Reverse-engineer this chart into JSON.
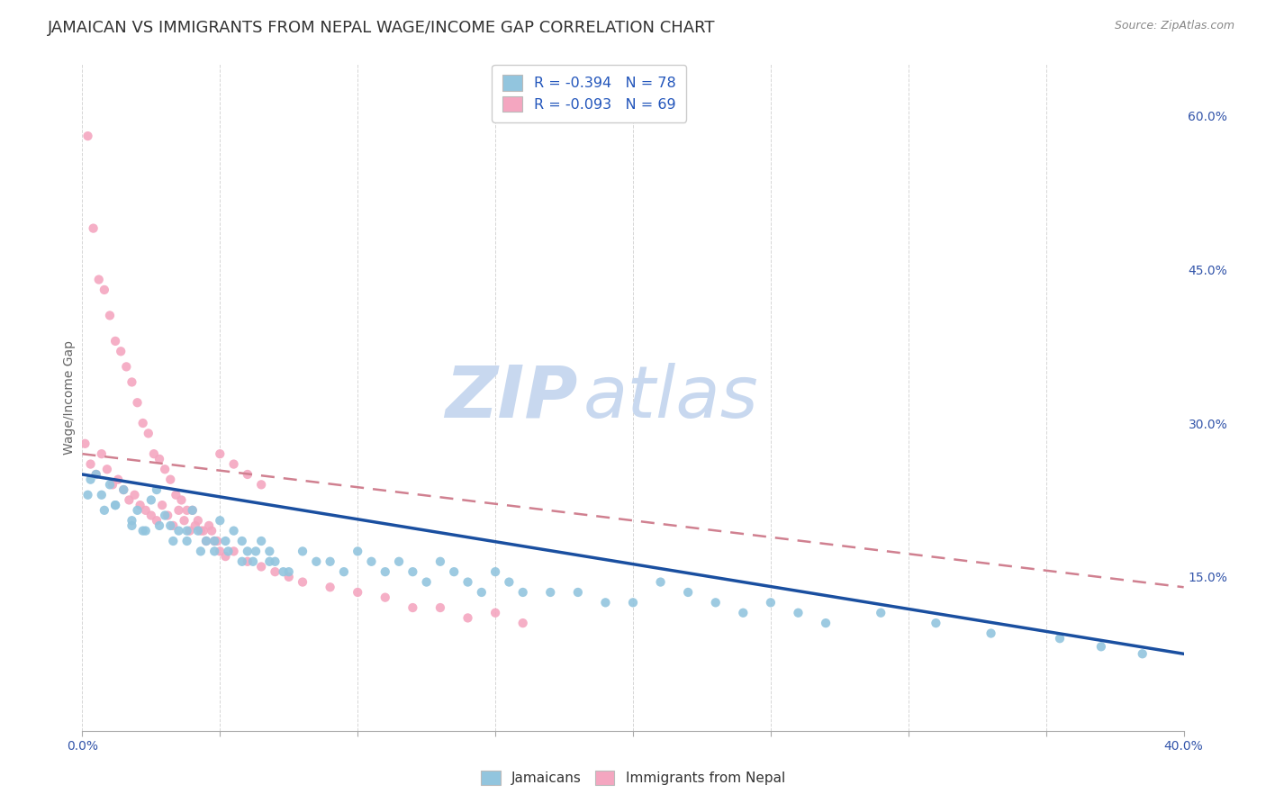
{
  "title": "JAMAICAN VS IMMIGRANTS FROM NEPAL WAGE/INCOME GAP CORRELATION CHART",
  "source_text": "Source: ZipAtlas.com",
  "ylabel": "Wage/Income Gap",
  "xlim": [
    0.0,
    0.4
  ],
  "ylim": [
    0.0,
    0.65
  ],
  "xticks": [
    0.0,
    0.05,
    0.1,
    0.15,
    0.2,
    0.25,
    0.3,
    0.35,
    0.4
  ],
  "yticks_right": [
    0.15,
    0.3,
    0.45,
    0.6
  ],
  "ytick_labels_right": [
    "15.0%",
    "30.0%",
    "45.0%",
    "60.0%"
  ],
  "r_jamaican": -0.394,
  "n_jamaican": 78,
  "r_nepal": -0.093,
  "n_nepal": 69,
  "color_jamaican": "#92c5de",
  "color_nepal": "#f4a6c0",
  "color_jamaican_line": "#1a4fa0",
  "color_nepal_line": "#d08090",
  "background_color": "#ffffff",
  "plot_bg_color": "#ffffff",
  "grid_color": "#cccccc",
  "watermark_zip": "ZIP",
  "watermark_atlas": "atlas",
  "watermark_color": "#c8d8ef",
  "title_fontsize": 13,
  "label_fontsize": 10,
  "tick_fontsize": 10,
  "legend_r_color": "#2255bb",
  "legend_n_color": "#2255bb",
  "jamaican_x": [
    0.002,
    0.005,
    0.008,
    0.01,
    0.012,
    0.015,
    0.018,
    0.02,
    0.022,
    0.025,
    0.027,
    0.03,
    0.032,
    0.035,
    0.038,
    0.04,
    0.042,
    0.045,
    0.048,
    0.05,
    0.052,
    0.055,
    0.058,
    0.06,
    0.062,
    0.065,
    0.068,
    0.07,
    0.075,
    0.08,
    0.085,
    0.09,
    0.095,
    0.1,
    0.105,
    0.11,
    0.115,
    0.12,
    0.125,
    0.13,
    0.135,
    0.14,
    0.145,
    0.15,
    0.155,
    0.16,
    0.17,
    0.18,
    0.19,
    0.2,
    0.003,
    0.007,
    0.012,
    0.018,
    0.023,
    0.028,
    0.033,
    0.038,
    0.043,
    0.048,
    0.053,
    0.058,
    0.063,
    0.068,
    0.073,
    0.21,
    0.22,
    0.23,
    0.24,
    0.25,
    0.26,
    0.27,
    0.29,
    0.31,
    0.33,
    0.355,
    0.37,
    0.385
  ],
  "jamaican_y": [
    0.23,
    0.25,
    0.215,
    0.24,
    0.22,
    0.235,
    0.2,
    0.215,
    0.195,
    0.225,
    0.235,
    0.21,
    0.2,
    0.195,
    0.185,
    0.215,
    0.195,
    0.185,
    0.175,
    0.205,
    0.185,
    0.195,
    0.185,
    0.175,
    0.165,
    0.185,
    0.175,
    0.165,
    0.155,
    0.175,
    0.165,
    0.165,
    0.155,
    0.175,
    0.165,
    0.155,
    0.165,
    0.155,
    0.145,
    0.165,
    0.155,
    0.145,
    0.135,
    0.155,
    0.145,
    0.135,
    0.135,
    0.135,
    0.125,
    0.125,
    0.245,
    0.23,
    0.22,
    0.205,
    0.195,
    0.2,
    0.185,
    0.195,
    0.175,
    0.185,
    0.175,
    0.165,
    0.175,
    0.165,
    0.155,
    0.145,
    0.135,
    0.125,
    0.115,
    0.125,
    0.115,
    0.105,
    0.115,
    0.105,
    0.095,
    0.09,
    0.082,
    0.075
  ],
  "nepal_x": [
    0.001,
    0.003,
    0.005,
    0.007,
    0.009,
    0.011,
    0.013,
    0.015,
    0.017,
    0.019,
    0.021,
    0.023,
    0.025,
    0.027,
    0.029,
    0.031,
    0.033,
    0.035,
    0.037,
    0.039,
    0.041,
    0.043,
    0.045,
    0.047,
    0.049,
    0.002,
    0.004,
    0.006,
    0.008,
    0.01,
    0.012,
    0.014,
    0.016,
    0.018,
    0.02,
    0.022,
    0.024,
    0.026,
    0.028,
    0.03,
    0.032,
    0.034,
    0.036,
    0.038,
    0.04,
    0.042,
    0.044,
    0.046,
    0.048,
    0.05,
    0.052,
    0.055,
    0.06,
    0.065,
    0.07,
    0.075,
    0.08,
    0.09,
    0.1,
    0.11,
    0.12,
    0.13,
    0.14,
    0.15,
    0.16,
    0.05,
    0.055,
    0.06,
    0.065
  ],
  "nepal_y": [
    0.28,
    0.26,
    0.25,
    0.27,
    0.255,
    0.24,
    0.245,
    0.235,
    0.225,
    0.23,
    0.22,
    0.215,
    0.21,
    0.205,
    0.22,
    0.21,
    0.2,
    0.215,
    0.205,
    0.195,
    0.2,
    0.195,
    0.185,
    0.195,
    0.185,
    0.58,
    0.49,
    0.44,
    0.43,
    0.405,
    0.38,
    0.37,
    0.355,
    0.34,
    0.32,
    0.3,
    0.29,
    0.27,
    0.265,
    0.255,
    0.245,
    0.23,
    0.225,
    0.215,
    0.215,
    0.205,
    0.195,
    0.2,
    0.185,
    0.175,
    0.17,
    0.175,
    0.165,
    0.16,
    0.155,
    0.15,
    0.145,
    0.14,
    0.135,
    0.13,
    0.12,
    0.12,
    0.11,
    0.115,
    0.105,
    0.27,
    0.26,
    0.25,
    0.24
  ]
}
